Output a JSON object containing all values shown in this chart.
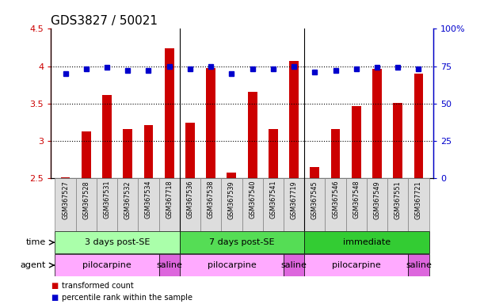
{
  "title": "GDS3827 / 50021",
  "samples": [
    "GSM367527",
    "GSM367528",
    "GSM367531",
    "GSM367532",
    "GSM367534",
    "GSM367718",
    "GSM367536",
    "GSM367538",
    "GSM367539",
    "GSM367540",
    "GSM367541",
    "GSM367719",
    "GSM367545",
    "GSM367546",
    "GSM367548",
    "GSM367549",
    "GSM367551",
    "GSM367721"
  ],
  "transformed_count": [
    2.51,
    3.12,
    3.61,
    3.15,
    3.21,
    4.24,
    3.24,
    3.97,
    2.57,
    3.65,
    3.16,
    4.07,
    2.65,
    3.16,
    3.46,
    3.96,
    3.51,
    3.9
  ],
  "percentile_rank": [
    70,
    73,
    74,
    72,
    72,
    75,
    73,
    75,
    70,
    73,
    73,
    75,
    71,
    72,
    73,
    74,
    74,
    73
  ],
  "ylim_left": [
    2.5,
    4.5
  ],
  "ylim_right": [
    0,
    100
  ],
  "yticks_left": [
    2.5,
    3.0,
    3.5,
    4.0,
    4.5
  ],
  "yticks_right": [
    0,
    25,
    50,
    75,
    100
  ],
  "ytick_labels_left": [
    "2.5",
    "3",
    "3.5",
    "4",
    "4.5"
  ],
  "ytick_labels_right": [
    "0",
    "25",
    "50",
    "75",
    "100%"
  ],
  "bar_color": "#cc0000",
  "dot_color": "#0000cc",
  "grid_color": "#000000",
  "bar_width": 0.45,
  "time_groups": [
    {
      "label": "3 days post-SE",
      "start": 0,
      "end": 5,
      "color": "#aaffaa"
    },
    {
      "label": "7 days post-SE",
      "start": 6,
      "end": 11,
      "color": "#55dd55"
    },
    {
      "label": "immediate",
      "start": 12,
      "end": 17,
      "color": "#33cc33"
    }
  ],
  "agent_groups": [
    {
      "label": "pilocarpine",
      "start": 0,
      "end": 4,
      "color": "#ffaaff"
    },
    {
      "label": "saline",
      "start": 5,
      "end": 5,
      "color": "#dd66dd"
    },
    {
      "label": "pilocarpine",
      "start": 6,
      "end": 10,
      "color": "#ffaaff"
    },
    {
      "label": "saline",
      "start": 11,
      "end": 11,
      "color": "#dd66dd"
    },
    {
      "label": "pilocarpine",
      "start": 12,
      "end": 16,
      "color": "#ffaaff"
    },
    {
      "label": "saline",
      "start": 17,
      "end": 17,
      "color": "#dd66dd"
    }
  ],
  "legend_items": [
    {
      "label": "transformed count",
      "color": "#cc0000"
    },
    {
      "label": "percentile rank within the sample",
      "color": "#0000cc"
    }
  ],
  "bg_color": "#ffffff",
  "tick_color_left": "#cc0000",
  "tick_color_right": "#0000cc",
  "dotted_lines": [
    3.0,
    3.5,
    4.0
  ],
  "title_fontsize": 11,
  "time_label": "time",
  "agent_label": "agent",
  "xticklabel_bg": "#dddddd",
  "sep_indices": [
    5.5,
    11.5
  ]
}
